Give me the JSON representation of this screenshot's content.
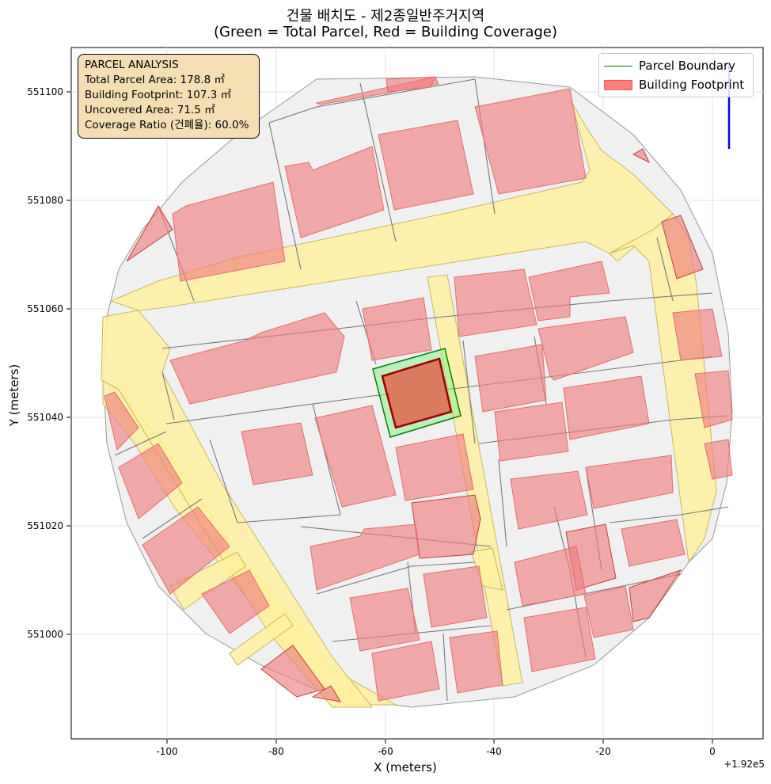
{
  "title": {
    "line1": "건물 배치도 - 제2종일반주거지역",
    "line2": "(Green = Total Parcel, Red = Building Coverage)"
  },
  "axes": {
    "xlabel": "X (meters)",
    "ylabel": "Y (meters)",
    "x_offset_label": "+1.92e5",
    "xticks": [
      "-100",
      "-80",
      "-60",
      "-40",
      "-20",
      "0"
    ],
    "yticks": [
      "551100",
      "551080",
      "551060",
      "551040",
      "551020",
      "551000"
    ],
    "grid": true
  },
  "info": {
    "heading": "PARCEL ANALYSIS",
    "total_area": "Total Parcel Area: 178.8 ㎡",
    "footprint": "Building Footprint: 107.3 ㎡",
    "uncovered": "Uncovered Area: 71.5 ㎡",
    "coverage": "Coverage Ratio (건폐율): 60.0%"
  },
  "legend": {
    "parcel_label": "Parcel Boundary",
    "building_label": "Building Footprint",
    "placement": "upper-right"
  },
  "colors": {
    "parcel": "#008000",
    "parcel_fill": "#90ee90",
    "building": "#ff7f7f",
    "target_building": "#e06650",
    "road": "#fff0a0",
    "block": "#f0f0f0",
    "north_arrow": "#0000ff"
  }
}
